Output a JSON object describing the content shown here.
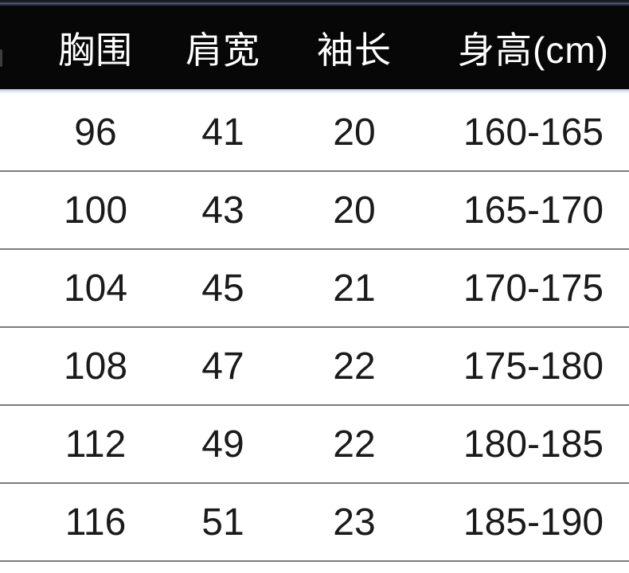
{
  "table": {
    "name": "garment-size-chart",
    "columns": [
      "胸围",
      "肩宽",
      "袖长",
      "身高(cm)"
    ],
    "rows": [
      [
        "96",
        "41",
        "20",
        "160-165"
      ],
      [
        "100",
        "43",
        "20",
        "165-170"
      ],
      [
        "104",
        "45",
        "21",
        "170-175"
      ],
      [
        "108",
        "47",
        "22",
        "175-180"
      ],
      [
        "112",
        "49",
        "22",
        "180-185"
      ],
      [
        "116",
        "51",
        "23",
        "185-190"
      ]
    ]
  },
  "chart_data": {
    "type": "table",
    "title": "",
    "columns": [
      "胸围",
      "肩宽",
      "袖长",
      "身高(cm)"
    ],
    "rows": [
      {
        "胸围": 96,
        "肩宽": 41,
        "袖长": 20,
        "身高(cm)": "160-165"
      },
      {
        "胸围": 100,
        "肩宽": 43,
        "袖长": 20,
        "身高(cm)": "165-170"
      },
      {
        "胸围": 104,
        "肩宽": 45,
        "袖长": 21,
        "身高(cm)": "170-175"
      },
      {
        "胸围": 108,
        "肩宽": 47,
        "袖长": 22,
        "身高(cm)": "175-180"
      },
      {
        "胸围": 112,
        "肩宽": 49,
        "袖长": 22,
        "身高(cm)": "180-185"
      },
      {
        "胸围": 116,
        "肩宽": 51,
        "袖长": 23,
        "身高(cm)": "185-190"
      }
    ],
    "layout_hints": {
      "header_background": "#070707",
      "header_text_color": "#ffffff",
      "body_text_color": "#1a1a1a",
      "row_separator_color": "#7b7b7b",
      "left_column_cropped": true,
      "right_column_cropped": true
    }
  },
  "colors": {
    "header_bg": "#070707",
    "header_text": "#ffffff",
    "top_edge_line": "#59657c",
    "body_text": "#1a1a1a",
    "separator": "#7b7b7b",
    "background": "#ffffff"
  }
}
